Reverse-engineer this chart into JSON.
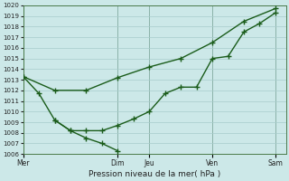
{
  "xlabel": "Pression niveau de la mer( hPa )",
  "bg_color": "#cce8e8",
  "grid_color": "#a8cccc",
  "line_color": "#1a5c1a",
  "marker_color": "#1a5c1a",
  "ylim": [
    1006,
    1020
  ],
  "yticks": [
    1006,
    1007,
    1008,
    1009,
    1010,
    1011,
    1012,
    1013,
    1014,
    1015,
    1016,
    1017,
    1018,
    1019,
    1020
  ],
  "xlim": [
    0,
    25
  ],
  "day_labels": [
    "Mer",
    "",
    "Dim",
    "Jeu",
    "",
    "Ven",
    "",
    "Sam"
  ],
  "day_tick_labels": [
    "Mer",
    "Dim",
    "Jeu",
    "Ven",
    "Sam"
  ],
  "day_tick_positions": [
    0,
    9,
    12,
    18,
    24
  ],
  "vline_positions": [
    0,
    9,
    12,
    18,
    24
  ],
  "line1_x": [
    0,
    3,
    6,
    9,
    12,
    15,
    18,
    21,
    24
  ],
  "line1_y": [
    1013.3,
    1012.0,
    1012.0,
    1013.2,
    1014.2,
    1015.0,
    1016.5,
    1018.5,
    1019.7
  ],
  "line2_x": [
    0,
    1.5,
    3,
    4.5,
    6,
    7.5,
    9,
    10.5,
    12,
    13.5,
    15,
    16.5,
    18,
    19.5,
    21,
    22.5,
    24
  ],
  "line2_y": [
    1013.3,
    1011.7,
    1009.2,
    1008.2,
    1008.2,
    1008.2,
    1008.7,
    1009.3,
    1010.0,
    1011.7,
    1012.3,
    1012.3,
    1015.0,
    1015.2,
    1017.5,
    1018.3,
    1019.3
  ],
  "line3_x": [
    3,
    4.5,
    6,
    7.5,
    9
  ],
  "line3_y": [
    1009.2,
    1008.2,
    1007.5,
    1007.0,
    1006.3
  ]
}
